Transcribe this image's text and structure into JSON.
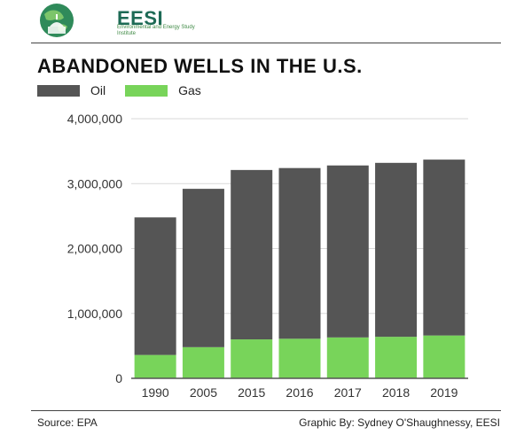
{
  "brand": {
    "name": "EESI",
    "tagline": "Environmental and Energy Study Institute"
  },
  "footer": {
    "source": "Source: EPA",
    "credit": "Graphic By: Sydney O'Shaughnessy, EESI"
  },
  "colors": {
    "oil": "#555555",
    "gas": "#78d45a",
    "grid": "#d9d9d9",
    "axis": "#555555",
    "brand": "#1d6a55"
  },
  "chart_data": {
    "type": "bar",
    "stacked": true,
    "title": "ABANDONED WELLS IN THE U.S.",
    "categories": [
      "1990",
      "2005",
      "2015",
      "2016",
      "2017",
      "2018",
      "2019"
    ],
    "series": [
      {
        "name": "Oil",
        "values": [
          2120000,
          2440000,
          2610000,
          2630000,
          2650000,
          2680000,
          2710000
        ]
      },
      {
        "name": "Gas",
        "values": [
          360000,
          480000,
          600000,
          610000,
          630000,
          640000,
          660000
        ]
      }
    ],
    "ylim": [
      0,
      4000000
    ],
    "yticks": [
      "0",
      "1,000,000",
      "2,000,000",
      "3,000,000",
      "4,000,000"
    ],
    "ytick_values": [
      0,
      1000000,
      2000000,
      3000000,
      4000000
    ],
    "grid": true,
    "legend_position": "top-left"
  }
}
